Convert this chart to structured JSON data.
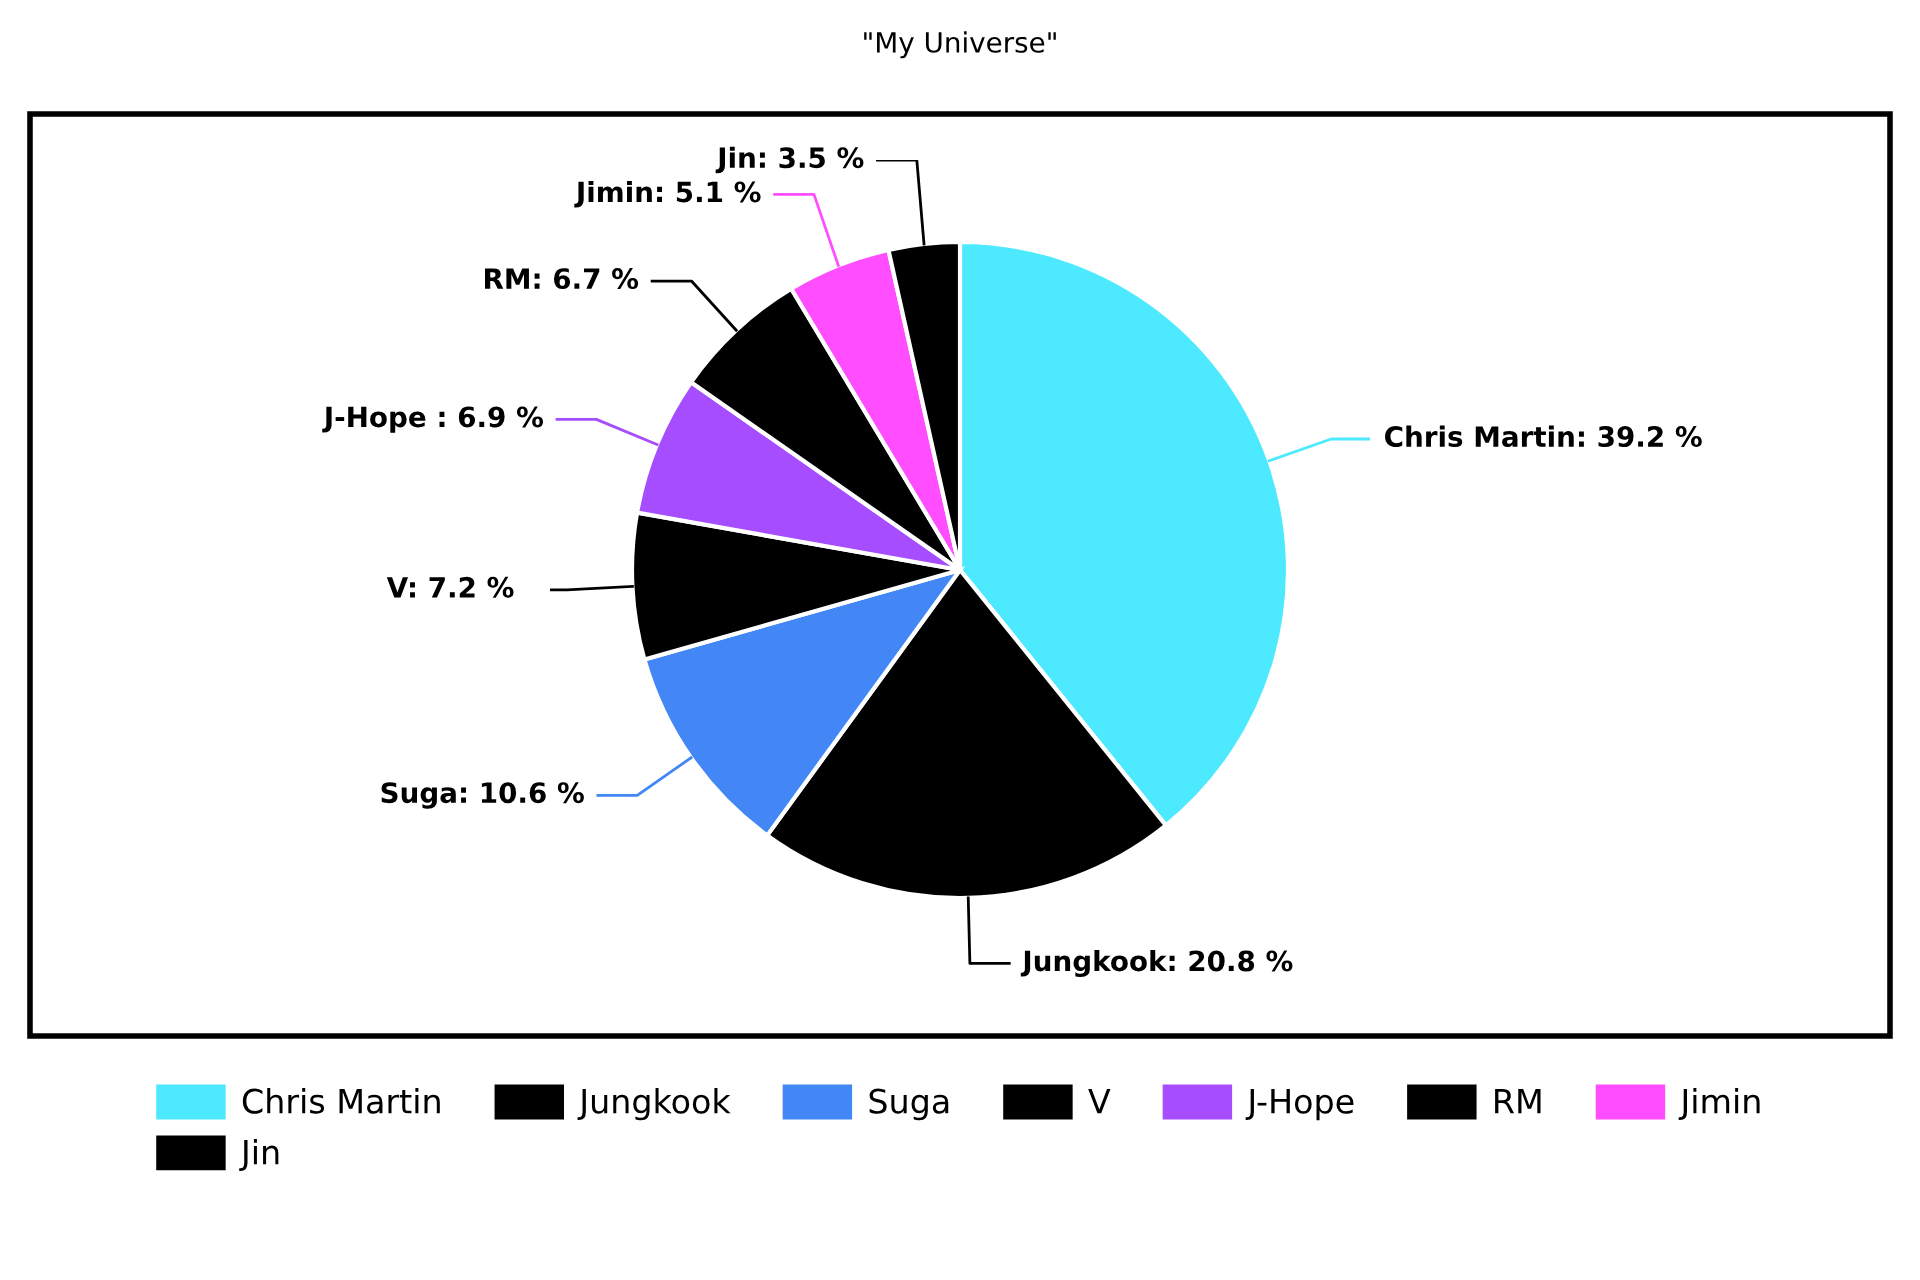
{
  "chart_data": {
    "type": "pie",
    "title": "\"My Universe\"",
    "categories": [
      "Chris Martin",
      "Jungkook",
      "Suga",
      "V",
      "J-Hope",
      "RM",
      "Jimin",
      "Jin"
    ],
    "values": [
      39.2,
      20.8,
      10.6,
      7.2,
      6.9,
      6.7,
      5.1,
      3.5
    ],
    "colors": [
      "#4deaff",
      "#000000",
      "#4287f5",
      "#000000",
      "#a64dff",
      "#000000",
      "#ff4dff",
      "#000000"
    ],
    "value_labels": [
      "Chris Martin: 39.2 %",
      "Jungkook: 20.8 %",
      "Suga: 10.6 %",
      "V: 7.2 %",
      "J-Hope : 6.9 %",
      "RM: 6.7 %",
      "Jimin: 5.1 %",
      "Jin: 3.5 %"
    ],
    "legend": "bottom"
  }
}
